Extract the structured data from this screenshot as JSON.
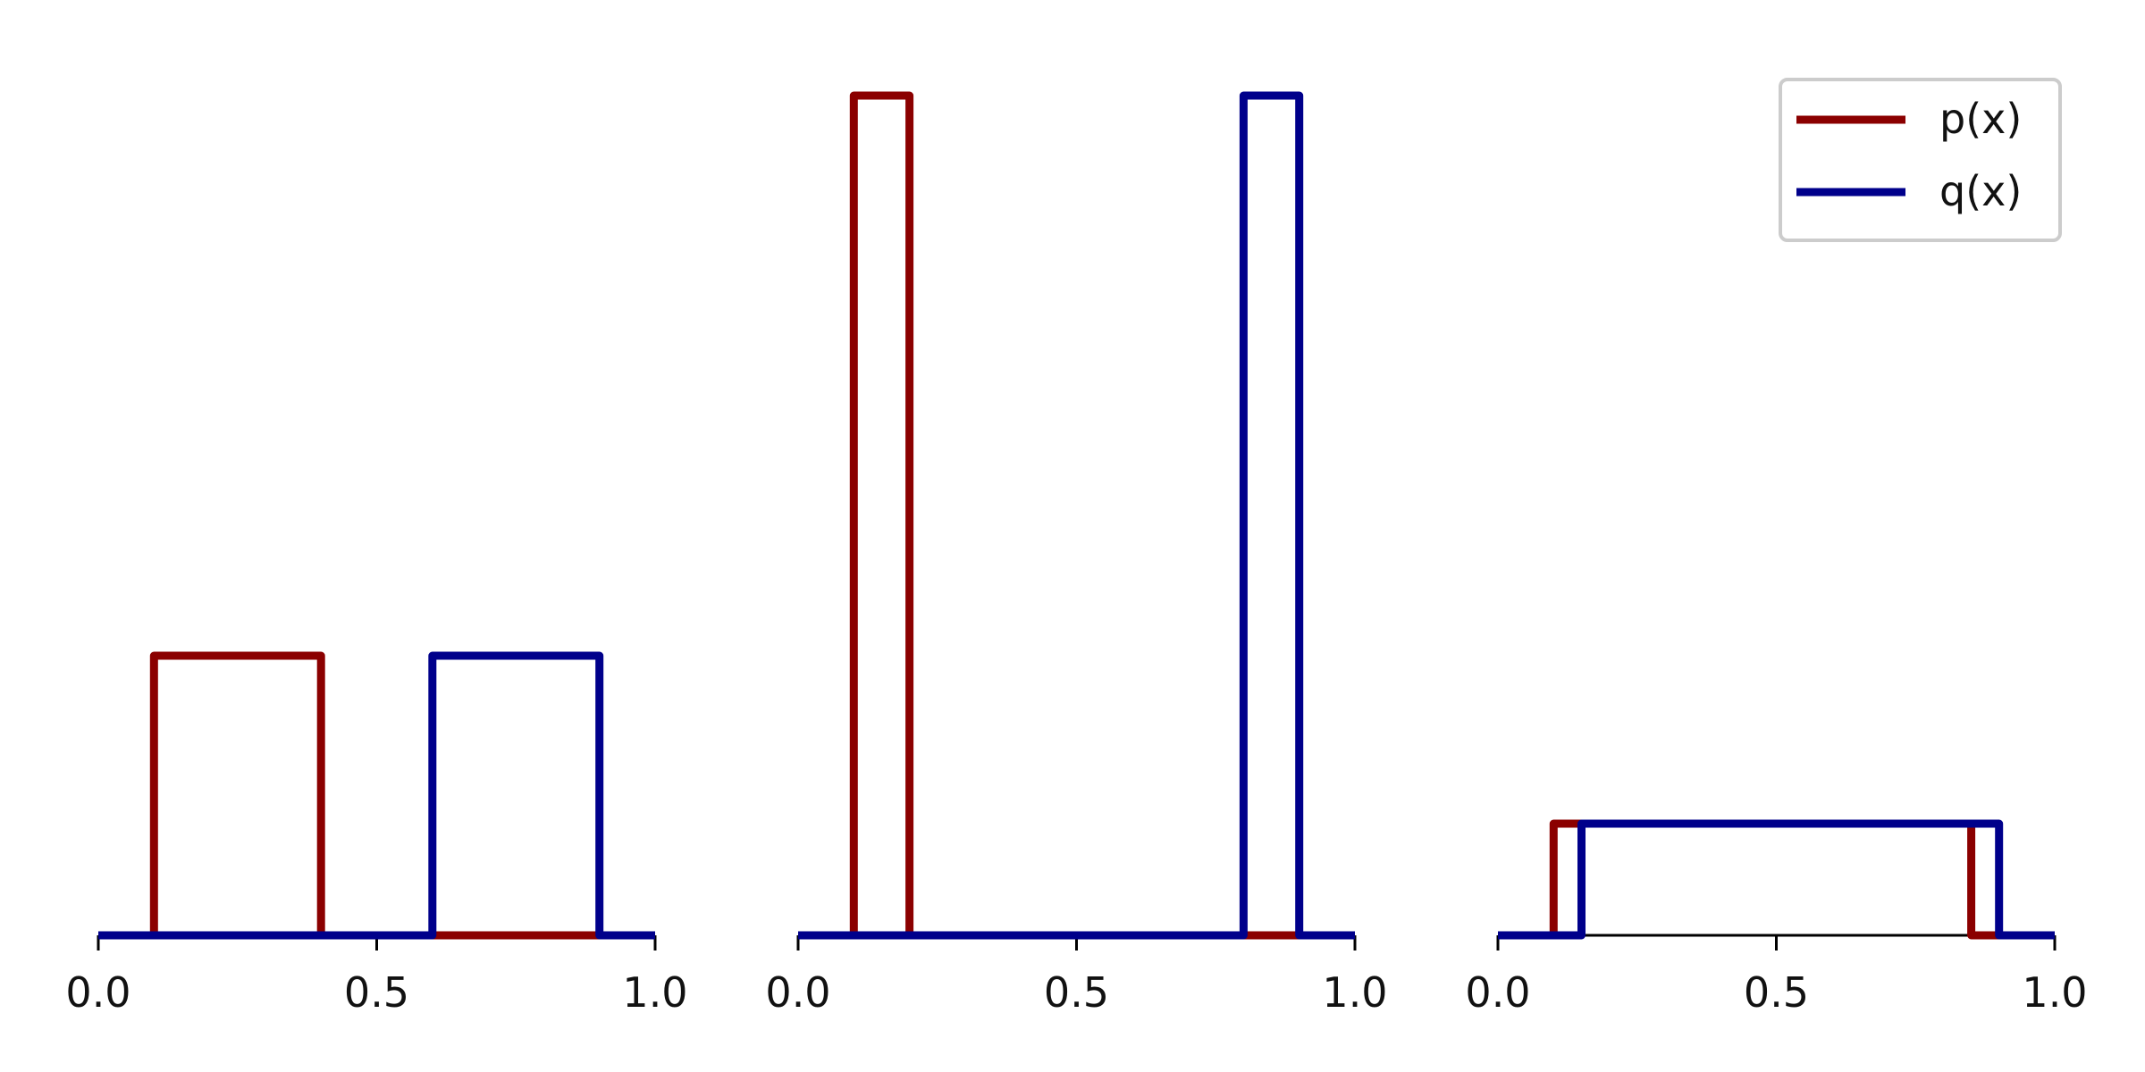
{
  "colors": {
    "p": "#8b0000",
    "q": "#00008b"
  },
  "legend": {
    "placement": "top-right",
    "entries": [
      {
        "label": "p(x)",
        "series": "p"
      },
      {
        "label": "q(x)",
        "series": "q"
      }
    ]
  },
  "chart_data": [
    {
      "type": "line",
      "xlim": [
        0.0,
        1.0
      ],
      "ylim": [
        0.0,
        8.0
      ],
      "xticks": [
        "0.0",
        "0.5",
        "1.0"
      ],
      "grid": false,
      "series": [
        {
          "name": "p(x)",
          "key": "p",
          "x": [
            0.0,
            0.1,
            0.1,
            0.4,
            0.4,
            1.0
          ],
          "y": [
            0,
            0,
            3.33,
            3.33,
            0,
            0
          ]
        },
        {
          "name": "q(x)",
          "key": "q",
          "x": [
            0.0,
            0.6,
            0.6,
            0.9,
            0.9,
            1.0
          ],
          "y": [
            0,
            0,
            3.33,
            3.33,
            0,
            0
          ]
        }
      ]
    },
    {
      "type": "line",
      "xlim": [
        0.0,
        1.0
      ],
      "ylim": [
        0.0,
        8.0
      ],
      "xticks": [
        "0.0",
        "0.5",
        "1.0"
      ],
      "grid": false,
      "series": [
        {
          "name": "p(x)",
          "key": "p",
          "x": [
            0.0,
            0.1,
            0.1,
            0.2,
            0.2,
            1.0
          ],
          "y": [
            0,
            0,
            10,
            10,
            0,
            0
          ]
        },
        {
          "name": "q(x)",
          "key": "q",
          "x": [
            0.0,
            0.8,
            0.8,
            0.9,
            0.9,
            1.0
          ],
          "y": [
            0,
            0,
            10,
            10,
            0,
            0
          ]
        }
      ]
    },
    {
      "type": "line",
      "xlim": [
        0.0,
        1.0
      ],
      "ylim": [
        0.0,
        8.0
      ],
      "xticks": [
        "0.0",
        "0.5",
        "1.0"
      ],
      "grid": false,
      "series": [
        {
          "name": "p(x)",
          "key": "p",
          "x": [
            0.0,
            0.1,
            0.1,
            0.85,
            0.85,
            1.0
          ],
          "y": [
            0,
            0,
            1.33,
            1.33,
            0,
            0
          ]
        },
        {
          "name": "q(x)",
          "key": "q",
          "x": [
            0.0,
            0.15,
            0.15,
            0.9,
            0.9,
            1.0
          ],
          "y": [
            0,
            0,
            1.33,
            1.33,
            0,
            0
          ]
        }
      ]
    }
  ]
}
